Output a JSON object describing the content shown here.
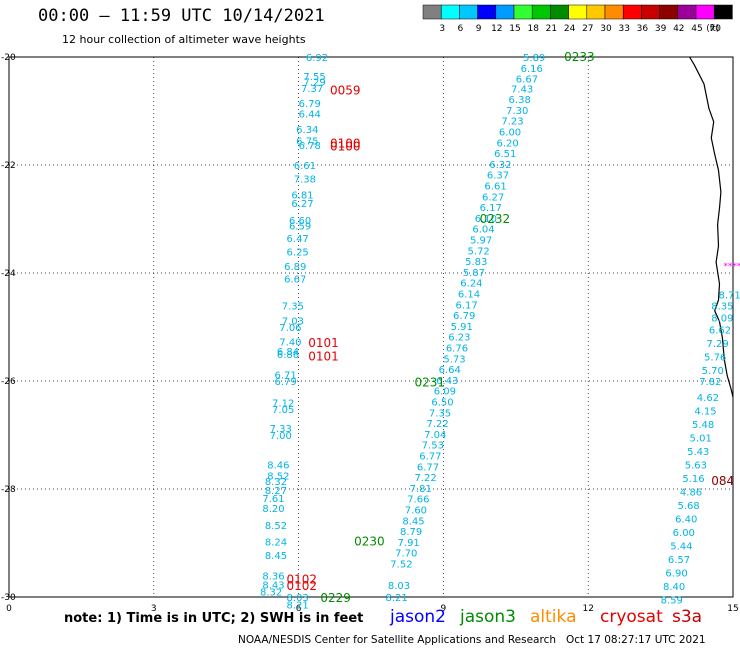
{
  "header": {
    "title": "00:00 – 11:59 UTC 10/14/2021",
    "subtitle": "12 hour collection of altimeter wave heights"
  },
  "colorbar": {
    "unit": "(ft)",
    "bins": [
      {
        "label": "",
        "color": "#808080"
      },
      {
        "label": "3",
        "color": "#00ffff"
      },
      {
        "label": "6",
        "color": "#00c8ff"
      },
      {
        "label": "9",
        "color": "#0000ff"
      },
      {
        "label": "12",
        "color": "#009bff"
      },
      {
        "label": "15",
        "color": "#32ff32"
      },
      {
        "label": "18",
        "color": "#00c800"
      },
      {
        "label": "21",
        "color": "#008c00"
      },
      {
        "label": "24",
        "color": "#ffff00"
      },
      {
        "label": "27",
        "color": "#ffc800"
      },
      {
        "label": "30",
        "color": "#ff8c00"
      },
      {
        "label": "33",
        "color": "#ff0000"
      },
      {
        "label": "36",
        "color": "#c80000"
      },
      {
        "label": "39",
        "color": "#8c0000"
      },
      {
        "label": "42",
        "color": "#9b009b"
      },
      {
        "label": "45",
        "color": "#ff00ff"
      },
      {
        "label": "70",
        "color": "#000000"
      }
    ]
  },
  "map": {
    "x_ticks": [
      "0",
      "3",
      "6",
      "9",
      "12",
      "15"
    ],
    "y_ticks": [
      "-20",
      "-22",
      "-24",
      "-26",
      "-28",
      "-30"
    ],
    "xlim": [
      0,
      15
    ],
    "ylim": [
      -30,
      -20
    ]
  },
  "colors": {
    "swh": "#00b4e6",
    "time_green": "#008c00",
    "time_red": "#e60000",
    "time_darkred": "#8c0000",
    "jason2": "#0000ff",
    "jason3": "#008c00",
    "altika": "#ff8c00",
    "cryosat": "#e60000",
    "s3a": "#c80000",
    "coast": "#000000",
    "magenta_marks": "#ff00ff"
  },
  "tracks": [
    {
      "name": "track-a",
      "values": [
        "6.92",
        "7.55",
        "7.29",
        "7.37",
        "6.79",
        "6.44",
        "6.34",
        "6.75",
        "6.78",
        "6.61",
        "7.38",
        "6.81",
        "6.27",
        "6.60",
        "6.59",
        "6.47",
        "6.25",
        "6.89",
        "6.67",
        "7.35",
        "7.03",
        "7.06",
        "7.40",
        "6.84",
        "6.86",
        "6.71",
        "6.79",
        "7.12",
        "7.05",
        "7.33",
        "7.00",
        "8.46",
        "8.52",
        "8.32",
        "8.27",
        "7.61",
        "8.20",
        "8.52",
        "8.24",
        "8.45",
        "8.36",
        "8.43",
        "8.32",
        "8.03",
        "8.21"
      ],
      "lon": [
        6.15,
        6.1,
        6.1,
        6.05,
        6.0,
        6.0,
        5.95,
        5.95,
        6.0,
        5.9,
        5.9,
        5.85,
        5.85,
        5.8,
        5.8,
        5.75,
        5.75,
        5.7,
        5.7,
        5.65,
        5.65,
        5.6,
        5.6,
        5.55,
        5.55,
        5.5,
        5.5,
        5.45,
        5.45,
        5.4,
        5.4,
        5.35,
        5.35,
        5.3,
        5.3,
        5.25,
        5.25,
        5.3,
        5.3,
        5.3,
        5.25,
        5.25,
        5.2,
        5.75,
        5.75
      ],
      "lat": [
        -20.0,
        -20.35,
        -20.45,
        -20.57,
        -20.85,
        -21.05,
        -21.33,
        -21.55,
        -21.63,
        -22.0,
        -22.25,
        -22.55,
        -22.7,
        -23.02,
        -23.12,
        -23.35,
        -23.6,
        -23.87,
        -24.1,
        -24.6,
        -24.88,
        -25.0,
        -25.27,
        -25.44,
        -25.5,
        -25.88,
        -26.0,
        -26.4,
        -26.52,
        -26.87,
        -27.0,
        -27.55,
        -27.75,
        -27.85,
        -28.02,
        -28.17,
        -28.35,
        -28.67,
        -28.97,
        -29.22,
        -29.6,
        -29.77,
        -29.9,
        -30.0,
        -30.14
      ]
    },
    {
      "name": "track-b",
      "values": [
        "5.89",
        "6.16",
        "6.67",
        "7.43",
        "6.38",
        "7.30",
        "7.23",
        "6.00",
        "6.20",
        "6.51",
        "6.32",
        "6.37",
        "6.61",
        "6.27",
        "6.17",
        "6.10",
        "6.04",
        "5.97",
        "5.72",
        "5.83",
        "5.87",
        "6.24",
        "6.14",
        "6.17",
        "6.79",
        "5.91",
        "6.23",
        "6.76",
        "5.73",
        "6.64",
        "6.43",
        "6.09",
        "6.50",
        "7.35",
        "7.22",
        "7.04",
        "7.53",
        "6.77",
        "6.77",
        "7.22",
        "7.81",
        "7.66",
        "7.60",
        "8.45",
        "8.79",
        "7.91",
        "7.70",
        "7.52",
        "8.03",
        "8.21"
      ],
      "lon": [
        10.65,
        10.6,
        10.5,
        10.4,
        10.35,
        10.3,
        10.2,
        10.15,
        10.1,
        10.05,
        9.95,
        9.9,
        9.85,
        9.8,
        9.75,
        9.65,
        9.6,
        9.55,
        9.5,
        9.45,
        9.4,
        9.35,
        9.3,
        9.25,
        9.2,
        9.15,
        9.1,
        9.05,
        9.0,
        8.9,
        8.85,
        8.8,
        8.75,
        8.7,
        8.65,
        8.6,
        8.55,
        8.5,
        8.45,
        8.4,
        8.3,
        8.25,
        8.2,
        8.15,
        8.1,
        8.05,
        8.0,
        7.9,
        7.85,
        7.8
      ],
      "lat": [
        -20.0,
        -20.2,
        -20.4,
        -20.58,
        -20.78,
        -20.98,
        -21.18,
        -21.38,
        -21.58,
        -21.78,
        -21.98,
        -22.18,
        -22.38,
        -22.58,
        -22.78,
        -22.98,
        -23.18,
        -23.38,
        -23.58,
        -23.78,
        -23.98,
        -24.18,
        -24.38,
        -24.58,
        -24.78,
        -24.98,
        -25.18,
        -25.38,
        -25.58,
        -25.78,
        -25.98,
        -26.18,
        -26.38,
        -26.58,
        -26.78,
        -26.98,
        -27.18,
        -27.38,
        -27.58,
        -27.78,
        -27.98,
        -28.18,
        -28.38,
        -28.58,
        -28.78,
        -28.98,
        -29.18,
        -29.38,
        -29.78,
        -30.0
      ]
    },
    {
      "name": "track-c",
      "values": [
        "8.71",
        "8.35",
        "8.09",
        "6.62",
        "7.29",
        "5.76",
        "5.70",
        "7.82",
        "4.62",
        "4.15",
        "5.48",
        "5.01",
        "5.43",
        "5.63",
        "5.16",
        "4.86",
        "5.68",
        "6.40",
        "6.00",
        "5.44",
        "6.57",
        "6.90",
        "8.40",
        "8.59"
      ],
      "lon": [
        14.7,
        14.55,
        14.55,
        14.5,
        14.45,
        14.4,
        14.35,
        14.3,
        14.25,
        14.2,
        14.15,
        14.1,
        14.05,
        14.0,
        13.95,
        13.9,
        13.85,
        13.8,
        13.75,
        13.7,
        13.65,
        13.6,
        13.55,
        13.5
      ],
      "lat": [
        -24.4,
        -24.6,
        -24.82,
        -25.05,
        -25.3,
        -25.55,
        -25.8,
        -26.0,
        -26.3,
        -26.55,
        -26.8,
        -27.05,
        -27.3,
        -27.55,
        -27.8,
        -28.05,
        -28.3,
        -28.55,
        -28.8,
        -29.05,
        -29.3,
        -29.55,
        -29.8,
        -30.05
      ]
    }
  ],
  "time_labels": [
    {
      "text": "0233",
      "lon": 11.5,
      "lat": -20.0,
      "color": "green"
    },
    {
      "text": "0059",
      "lon": 6.65,
      "lat": -20.62,
      "color": "red"
    },
    {
      "text": "0100",
      "lon": 6.65,
      "lat": -21.6,
      "color": "red"
    },
    {
      "text": "0100",
      "lon": 6.65,
      "lat": -21.66,
      "color": "red"
    },
    {
      "text": "0232",
      "lon": 9.75,
      "lat": -23.0,
      "color": "green"
    },
    {
      "text": "0101",
      "lon": 6.2,
      "lat": -25.3,
      "color": "red"
    },
    {
      "text": "0101",
      "lon": 6.2,
      "lat": -25.55,
      "color": "red"
    },
    {
      "text": "0231",
      "lon": 8.4,
      "lat": -26.03,
      "color": "green"
    },
    {
      "text": "084",
      "lon": 14.55,
      "lat": -27.85,
      "color": "darkred"
    },
    {
      "text": "0230",
      "lon": 7.15,
      "lat": -28.97,
      "color": "green"
    },
    {
      "text": "0102",
      "lon": 5.75,
      "lat": -29.68,
      "color": "red"
    },
    {
      "text": "0102",
      "lon": 5.75,
      "lat": -29.8,
      "color": "red"
    },
    {
      "text": "0229",
      "lon": 6.45,
      "lat": -30.02,
      "color": "green"
    }
  ],
  "note": "note: 1) Time is in UTC; 2) SWH is in feet",
  "satellites": {
    "jason2": "jason2",
    "jason3": "jason3",
    "altika": "altika",
    "cryosat": "cryosat",
    "s3a": "s3a"
  },
  "footer": {
    "credit": "NOAA/NESDIS Center for Satellite Applications and Research",
    "timestamp": "Oct 17 08:27:17 UTC 2021"
  }
}
